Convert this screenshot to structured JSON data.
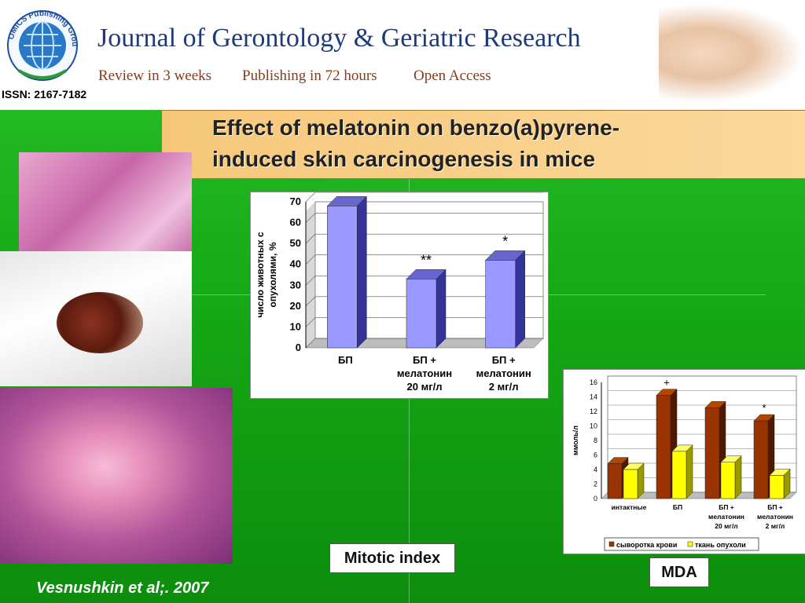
{
  "header": {
    "logo_text": "OMICS Publishing Group",
    "issn": "ISSN: 2167-7182",
    "journal_title": "Journal of Gerontology & Geriatric Research",
    "taglines": [
      "Review in 3 weeks",
      "Publishing in 72 hours",
      "Open Access"
    ]
  },
  "slide": {
    "title_line1": "Effect of melatonin on benzo(a)pyrene-",
    "title_line2": "induced  skin carcinogenesis in mice",
    "label_mitotic": "Mitotic index",
    "label_mda": "MDA",
    "citation": "Vesnushkin et al;. 2007"
  },
  "colors": {
    "background": "#18b018",
    "title_bar": "#f8cf88",
    "bar_blue": "#9999ff",
    "bar_brown": "#993300",
    "bar_yellow": "#ffff00"
  },
  "chart_data": [
    {
      "type": "bar",
      "categories": [
        [
          "БП"
        ],
        [
          "БП +",
          "мелатонин",
          "20 мг/л"
        ],
        [
          "БП +",
          "мелатонин",
          "2 мг/л"
        ]
      ],
      "values": [
        68,
        33,
        42
      ],
      "annotations": [
        "",
        "**",
        "*"
      ],
      "ylabel_lines": [
        "число животных с",
        "опухолями, %"
      ],
      "ylim": [
        0,
        70
      ],
      "yticks": [
        0,
        10,
        20,
        30,
        40,
        50,
        60,
        70
      ],
      "grid": true,
      "legend": "none"
    },
    {
      "type": "bar",
      "categories": [
        [
          "интактные"
        ],
        [
          "БП"
        ],
        [
          "БП +",
          "мелатонин",
          "20 мг/л"
        ],
        [
          "БП +",
          "мелатонин",
          "2 мг/л"
        ]
      ],
      "series": [
        {
          "name": "сыворотка крови",
          "values": [
            4.8,
            14.2,
            12.5,
            10.7
          ]
        },
        {
          "name": "ткань опухоли",
          "values": [
            4.0,
            6.5,
            5.0,
            3.2
          ]
        }
      ],
      "annotations": [
        "",
        "+",
        "",
        "*"
      ],
      "ylabel": "ммоль/л",
      "ylim": [
        0,
        16
      ],
      "yticks": [
        0,
        2,
        4,
        6,
        8,
        10,
        12,
        14,
        16
      ],
      "grid": true,
      "legend": "bottom"
    }
  ]
}
